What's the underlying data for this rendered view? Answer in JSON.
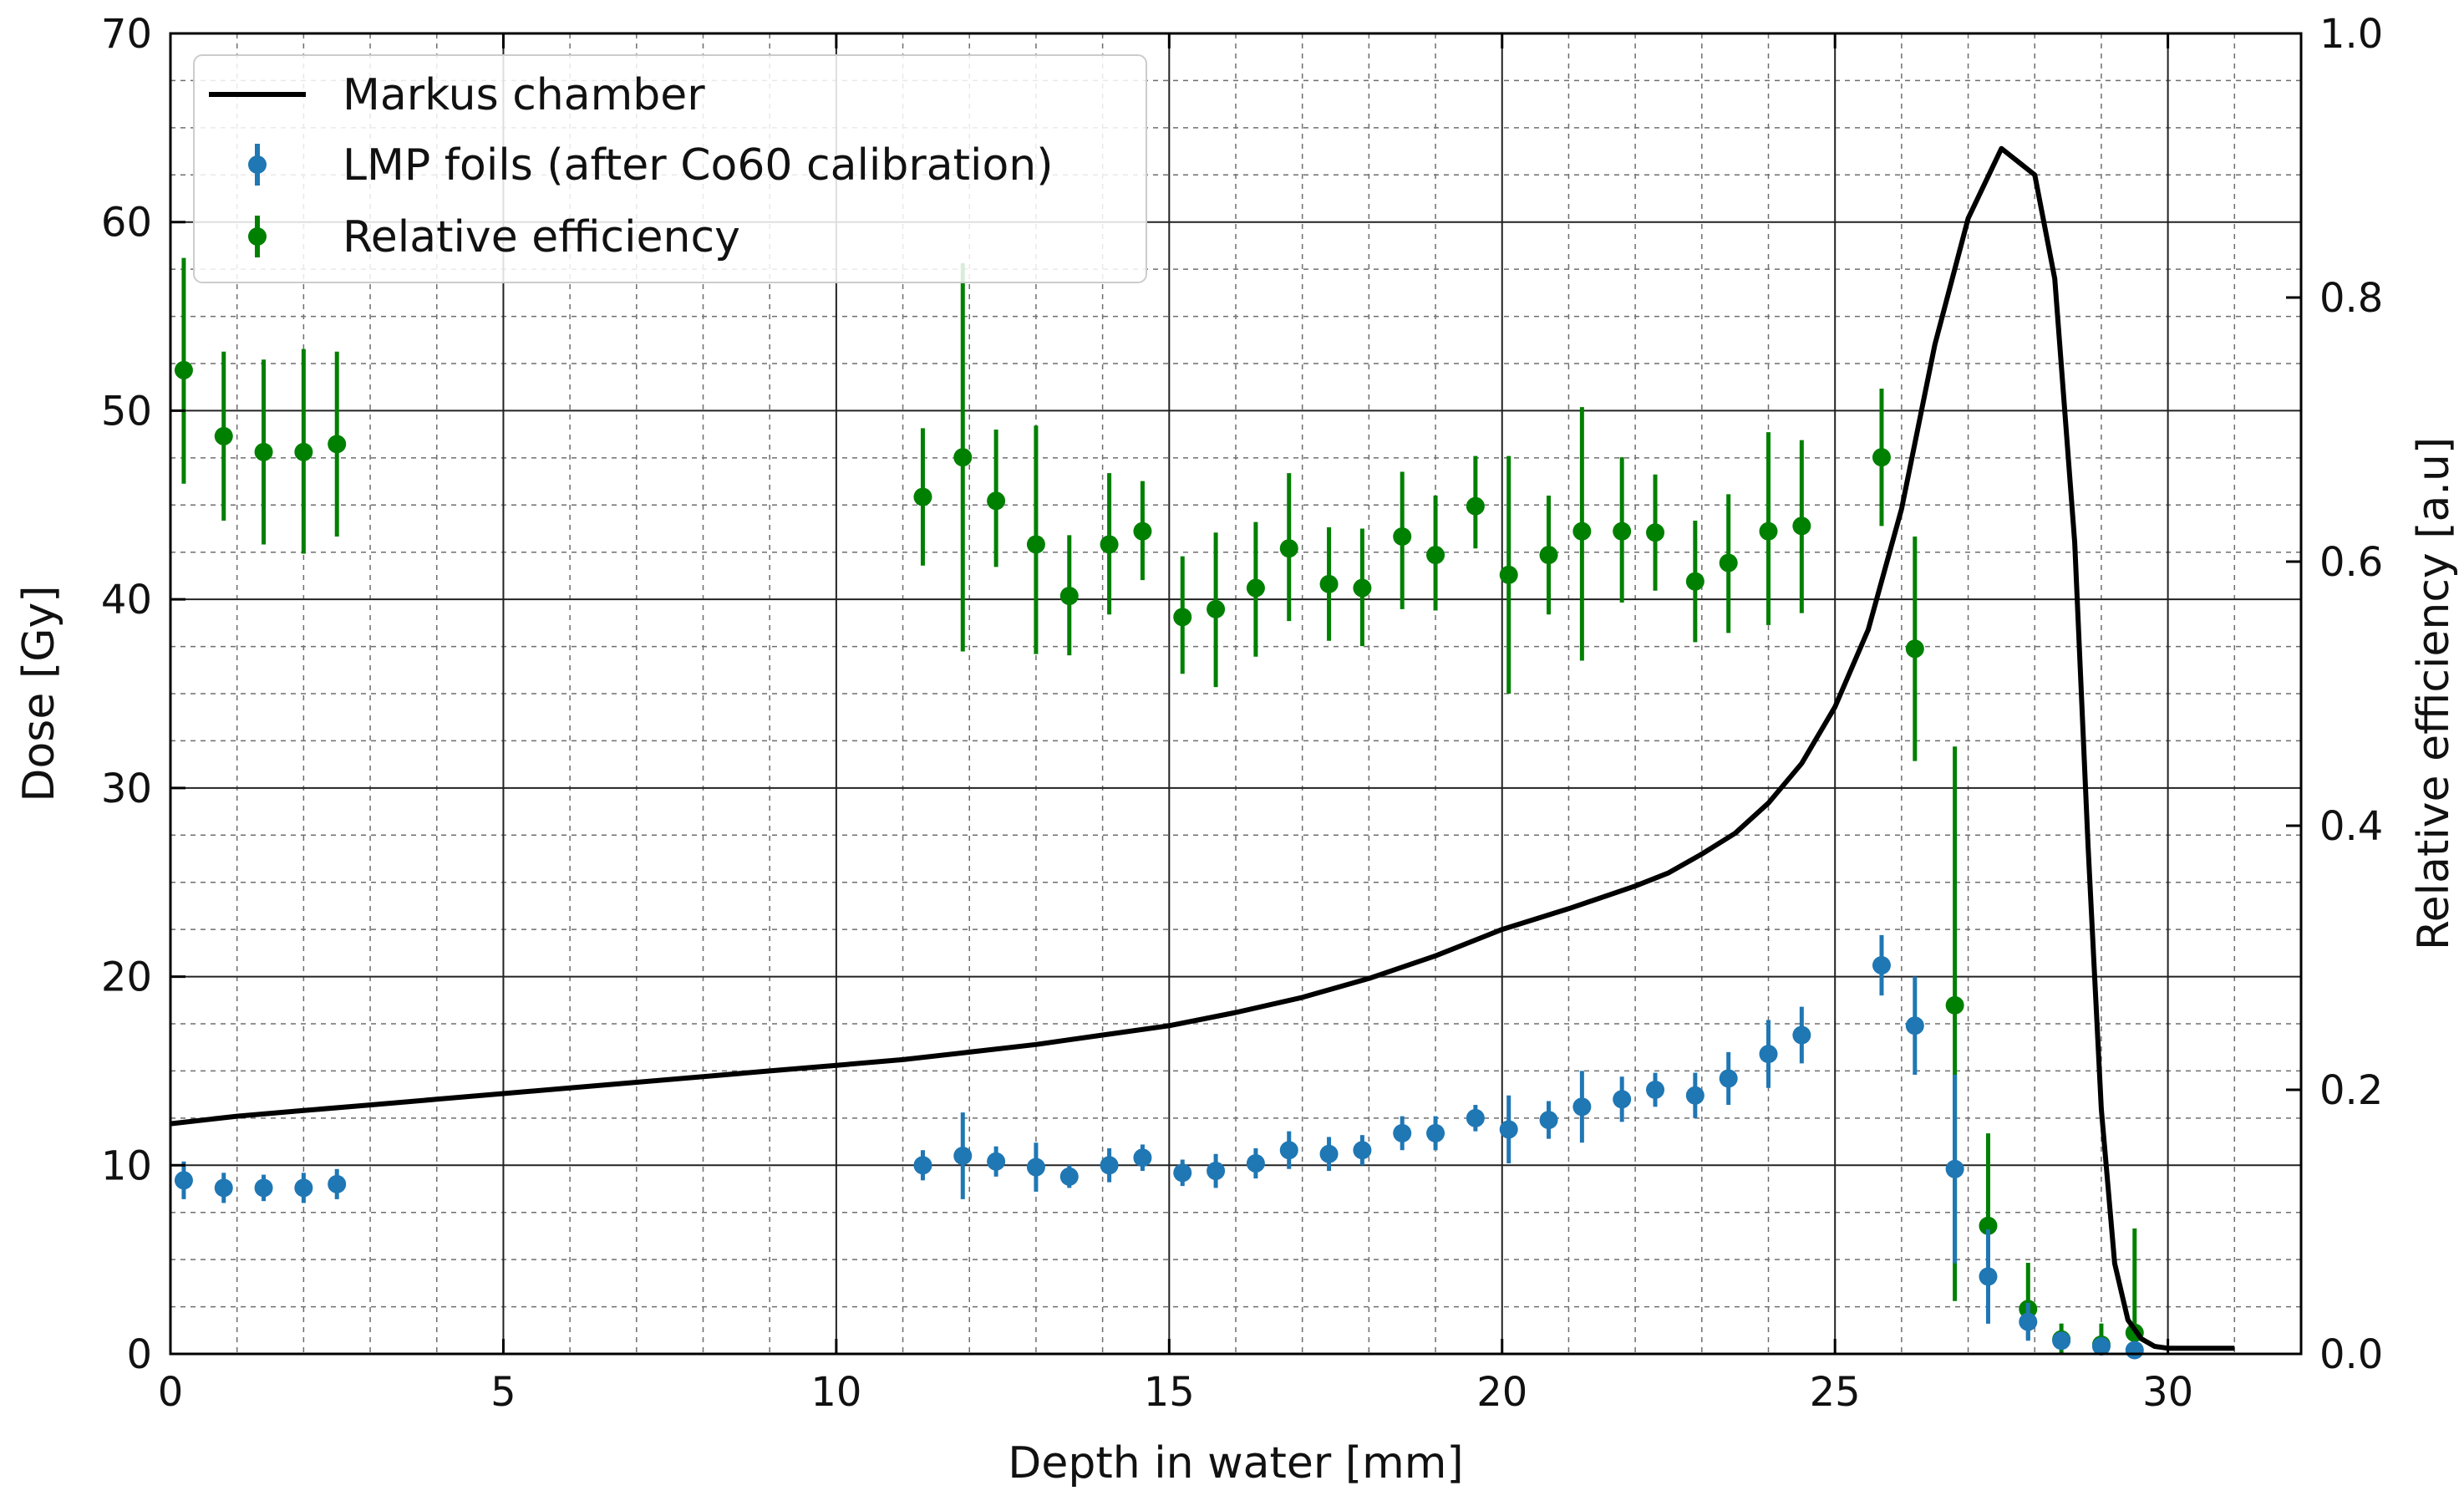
{
  "chart_data": {
    "type": "line",
    "title": "",
    "xlabel": "Depth in water [mm]",
    "ylabel": "Dose [Gy]",
    "y2label": "Relative efficiency [a.u]",
    "xlim": [
      0,
      32
    ],
    "ylim": [
      0,
      70
    ],
    "y2lim": [
      0,
      1.0
    ],
    "x_ticks": [
      0,
      5,
      10,
      15,
      20,
      25,
      30
    ],
    "y_ticks": [
      0,
      10,
      20,
      30,
      40,
      50,
      60,
      70
    ],
    "y2_ticks": [
      0.0,
      0.2,
      0.4,
      0.6,
      0.8,
      1.0
    ],
    "grid": true,
    "legend_position": "top-left",
    "colors": {
      "markus": "#000000",
      "lmp": "#1f77b4",
      "efficiency": "#008000"
    },
    "series": [
      {
        "name": "Markus chamber",
        "kind": "line",
        "axis": "left",
        "x": [
          0,
          1,
          2,
          3,
          4,
          5,
          6,
          7,
          8,
          9,
          10,
          11,
          12,
          13,
          14,
          15,
          16,
          17,
          18,
          19,
          20,
          21,
          22,
          22.5,
          23,
          23.5,
          24,
          24.5,
          25,
          25.5,
          26,
          26.5,
          27,
          27.5,
          28,
          28.3,
          28.6,
          28.8,
          29.0,
          29.2,
          29.4,
          29.6,
          29.8,
          30.0,
          30.2,
          30.5,
          31
        ],
        "y": [
          12.2,
          12.6,
          12.9,
          13.2,
          13.5,
          13.8,
          14.1,
          14.4,
          14.7,
          15.0,
          15.3,
          15.6,
          16.0,
          16.4,
          16.9,
          17.4,
          18.1,
          18.9,
          19.9,
          21.1,
          22.5,
          23.6,
          24.8,
          25.5,
          26.5,
          27.6,
          29.2,
          31.3,
          34.3,
          38.4,
          44.8,
          53.5,
          60.2,
          63.9,
          62.5,
          57.0,
          43.0,
          27.0,
          13.0,
          4.8,
          1.8,
          0.8,
          0.4,
          0.3,
          0.3,
          0.3,
          0.3
        ]
      },
      {
        "name": "LMP foils (after Co60 calibration)",
        "kind": "errorbar",
        "axis": "left",
        "x": [
          0.2,
          0.8,
          1.4,
          2.0,
          2.5,
          11.3,
          11.9,
          12.4,
          13.0,
          13.5,
          14.1,
          14.6,
          15.2,
          15.7,
          16.3,
          16.8,
          17.4,
          17.9,
          18.5,
          19.0,
          19.6,
          20.1,
          20.7,
          21.2,
          21.8,
          22.3,
          22.9,
          23.4,
          24.0,
          24.5,
          25.7,
          26.2,
          26.8,
          27.3,
          27.9,
          28.4,
          29.0,
          29.5
        ],
        "y": [
          9.2,
          8.8,
          8.8,
          8.8,
          9.0,
          10.0,
          10.5,
          10.2,
          9.9,
          9.4,
          10.0,
          10.4,
          9.6,
          9.7,
          10.1,
          10.8,
          10.6,
          10.8,
          11.7,
          11.7,
          12.5,
          11.9,
          12.4,
          13.1,
          13.5,
          14.0,
          13.7,
          14.6,
          15.9,
          16.9,
          20.6,
          17.4,
          9.8,
          4.1,
          1.7,
          0.7,
          0.4,
          0.2
        ],
        "yerr": [
          1.0,
          0.8,
          0.7,
          0.8,
          0.8,
          0.8,
          2.3,
          0.8,
          1.3,
          0.6,
          0.9,
          0.7,
          0.7,
          0.9,
          0.8,
          1.0,
          0.9,
          0.8,
          0.9,
          0.9,
          0.7,
          1.8,
          1.0,
          1.9,
          1.2,
          0.9,
          1.2,
          1.4,
          1.8,
          1.5,
          1.6,
          2.6,
          5.0,
          2.5,
          1.0,
          0.4,
          0.3,
          0.3
        ]
      },
      {
        "name": "Relative efficiency",
        "kind": "errorbar",
        "axis": "right",
        "x": [
          0.2,
          0.8,
          1.4,
          2.0,
          2.5,
          11.3,
          11.9,
          12.4,
          13.0,
          13.5,
          14.1,
          14.6,
          15.2,
          15.7,
          16.3,
          16.8,
          17.4,
          17.9,
          18.5,
          19.0,
          19.6,
          20.1,
          20.7,
          21.2,
          21.8,
          22.3,
          22.9,
          23.4,
          24.0,
          24.5,
          25.7,
          26.2,
          26.8,
          27.3,
          27.9,
          28.4,
          29.0,
          29.5
        ],
        "y": [
          0.745,
          0.695,
          0.683,
          0.683,
          0.689,
          0.649,
          0.679,
          0.646,
          0.613,
          0.574,
          0.613,
          0.623,
          0.558,
          0.564,
          0.58,
          0.61,
          0.583,
          0.58,
          0.619,
          0.605,
          0.642,
          0.59,
          0.605,
          0.623,
          0.623,
          0.622,
          0.585,
          0.599,
          0.623,
          0.627,
          0.679,
          0.534,
          0.264,
          0.097,
          0.034,
          0.011,
          0.007,
          0.016
        ]
      }
    ],
    "efficiency_error_range": {
      "low": [
        0.659,
        0.631,
        0.613,
        0.606,
        0.619,
        0.597,
        0.532,
        0.596,
        0.53,
        0.529,
        0.56,
        0.586,
        0.515,
        0.505,
        0.528,
        0.555,
        0.54,
        0.536,
        0.564,
        0.563,
        0.61,
        0.5,
        0.56,
        0.525,
        0.569,
        0.578,
        0.539,
        0.546,
        0.552,
        0.561,
        0.627,
        0.449,
        0.04,
        0.046,
        0.011,
        0.0,
        0.0,
        0.0
      ],
      "high": [
        0.83,
        0.759,
        0.753,
        0.761,
        0.759,
        0.701,
        0.826,
        0.7,
        0.703,
        0.62,
        0.667,
        0.661,
        0.604,
        0.622,
        0.63,
        0.667,
        0.626,
        0.625,
        0.668,
        0.65,
        0.68,
        0.68,
        0.65,
        0.717,
        0.679,
        0.666,
        0.631,
        0.651,
        0.698,
        0.692,
        0.731,
        0.619,
        0.46,
        0.167,
        0.069,
        0.023,
        0.023,
        0.095
      ]
    }
  }
}
